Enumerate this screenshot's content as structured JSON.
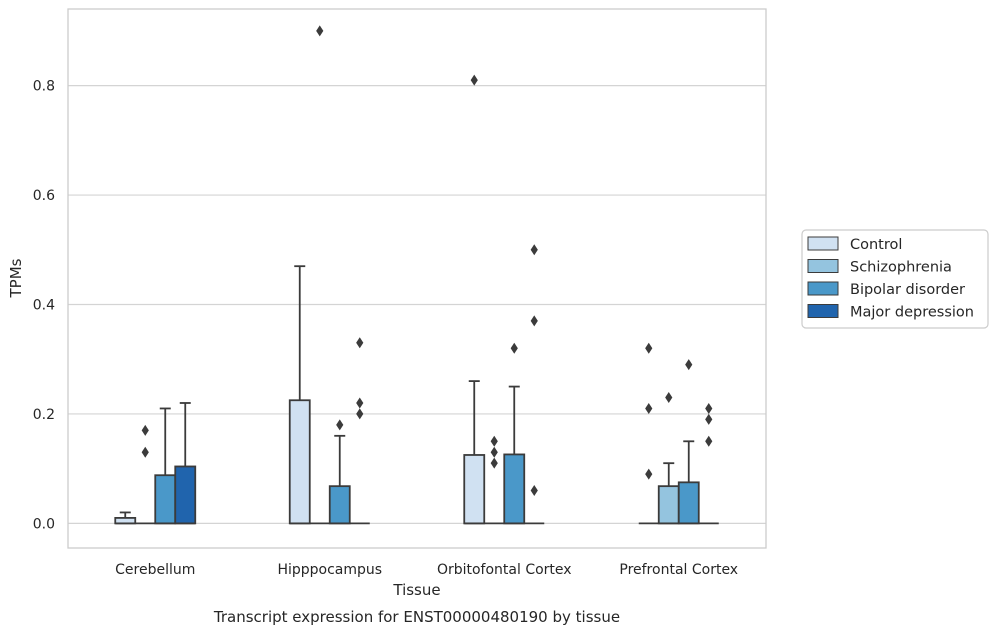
{
  "chart_data": {
    "type": "boxplot",
    "categories": [
      "Cerebellum",
      "Hipppocampus",
      "Orbitofontal Cortex",
      "Prefrontal Cortex"
    ],
    "xlabel": "Tissue",
    "ylabel": "TPMs",
    "caption": "Transcript expression for ENST00000480190 by tissue",
    "ylim": [
      -0.045,
      0.94
    ],
    "yticks": [
      0.0,
      0.2,
      0.4,
      0.6,
      0.8
    ],
    "ytick_labels": [
      "0.0",
      "0.2",
      "0.4",
      "0.6",
      "0.8"
    ],
    "grid": "horizontal",
    "legend": {
      "placement": "right",
      "entries": [
        "Control",
        "Schizophrenia",
        "Bipolar disorder",
        "Major depression"
      ]
    },
    "series": [
      {
        "name": "Control",
        "color": "#d0e1f2",
        "boxes": [
          {
            "q1": 0.0,
            "median": 0.0,
            "q3": 0.01,
            "whisker_low": 0.0,
            "whisker_high": 0.02,
            "outliers": []
          },
          {
            "q1": 0.0,
            "median": 0.0,
            "q3": 0.225,
            "whisker_low": 0.0,
            "whisker_high": 0.47,
            "outliers": []
          },
          {
            "q1": 0.0,
            "median": 0.0,
            "q3": 0.125,
            "whisker_low": 0.0,
            "whisker_high": 0.26,
            "outliers": [
              0.81
            ]
          },
          {
            "q1": 0.0,
            "median": 0.0,
            "q3": 0.0,
            "whisker_low": 0.0,
            "whisker_high": 0.0,
            "outliers": [
              0.32,
              0.21,
              0.09
            ]
          }
        ]
      },
      {
        "name": "Schizophrenia",
        "color": "#94c4df",
        "boxes": [
          {
            "q1": 0.0,
            "median": 0.0,
            "q3": 0.0,
            "whisker_low": 0.0,
            "whisker_high": 0.0,
            "outliers": [
              0.17,
              0.13
            ]
          },
          {
            "q1": 0.0,
            "median": 0.0,
            "q3": 0.0,
            "whisker_low": 0.0,
            "whisker_high": 0.0,
            "outliers": [
              0.9
            ]
          },
          {
            "q1": 0.0,
            "median": 0.0,
            "q3": 0.0,
            "whisker_low": 0.0,
            "whisker_high": 0.0,
            "outliers": [
              0.15,
              0.13,
              0.11
            ]
          },
          {
            "q1": 0.0,
            "median": 0.0,
            "q3": 0.068,
            "whisker_low": 0.0,
            "whisker_high": 0.11,
            "outliers": [
              0.23
            ]
          }
        ]
      },
      {
        "name": "Bipolar disorder",
        "color": "#4a98c9",
        "boxes": [
          {
            "q1": 0.0,
            "median": 0.0,
            "q3": 0.088,
            "whisker_low": 0.0,
            "whisker_high": 0.21,
            "outliers": []
          },
          {
            "q1": 0.0,
            "median": 0.0,
            "q3": 0.068,
            "whisker_low": 0.0,
            "whisker_high": 0.16,
            "outliers": [
              0.18
            ]
          },
          {
            "q1": 0.0,
            "median": 0.0,
            "q3": 0.126,
            "whisker_low": 0.0,
            "whisker_high": 0.25,
            "outliers": [
              0.32
            ]
          },
          {
            "q1": 0.0,
            "median": 0.0,
            "q3": 0.075,
            "whisker_low": 0.0,
            "whisker_high": 0.15,
            "outliers": [
              0.29
            ]
          }
        ]
      },
      {
        "name": "Major depression",
        "color": "#2064ad",
        "boxes": [
          {
            "q1": 0.0,
            "median": 0.0,
            "q3": 0.104,
            "whisker_low": 0.0,
            "whisker_high": 0.22,
            "outliers": []
          },
          {
            "q1": 0.0,
            "median": 0.0,
            "q3": 0.0,
            "whisker_low": 0.0,
            "whisker_high": 0.0,
            "outliers": [
              0.33,
              0.22,
              0.2
            ]
          },
          {
            "q1": 0.0,
            "median": 0.0,
            "q3": 0.0,
            "whisker_low": 0.0,
            "whisker_high": 0.0,
            "outliers": [
              0.5,
              0.37,
              0.06
            ]
          },
          {
            "q1": 0.0,
            "median": 0.0,
            "q3": 0.0,
            "whisker_low": 0.0,
            "whisker_high": 0.0,
            "outliers": [
              0.21,
              0.19,
              0.15
            ]
          }
        ]
      }
    ]
  }
}
